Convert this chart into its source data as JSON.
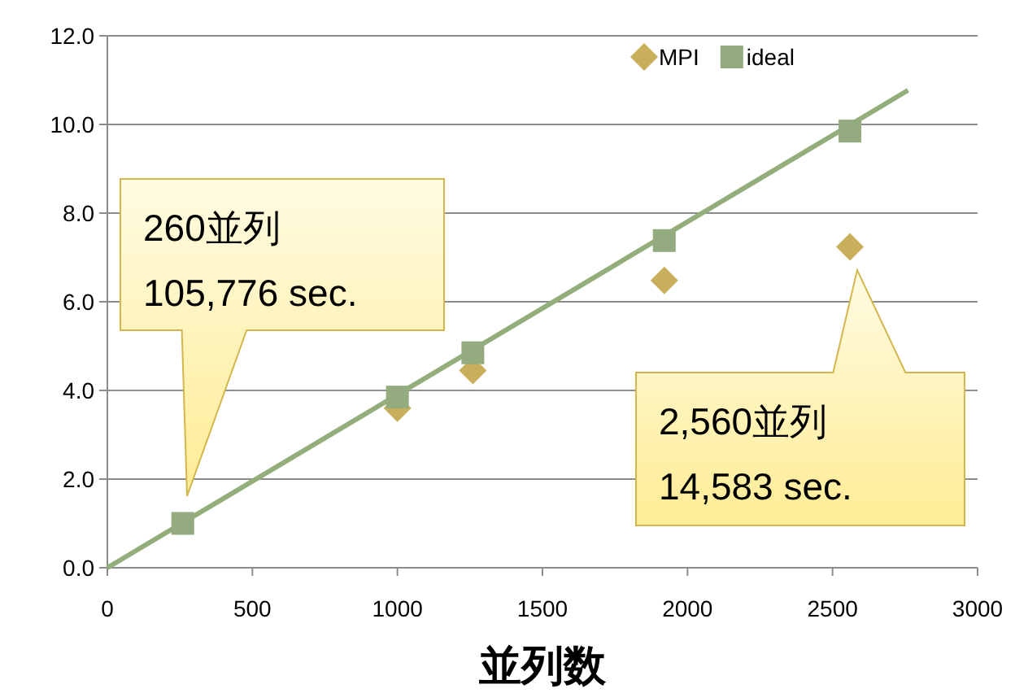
{
  "chart_data": {
    "type": "scatter",
    "xlabel": "並列数",
    "xlim": [
      0,
      3000
    ],
    "xticks": [
      0,
      500,
      1000,
      1500,
      2000,
      2500,
      3000
    ],
    "ylim": [
      0,
      12
    ],
    "yticks": [
      {
        "value": 0,
        "label": "0.0"
      },
      {
        "value": 2,
        "label": "2.0"
      },
      {
        "value": 4,
        "label": "4.0"
      },
      {
        "value": 6,
        "label": "6.0"
      },
      {
        "value": 8,
        "label": "8.0"
      },
      {
        "value": 10,
        "label": "10.0"
      },
      {
        "value": 12,
        "label": "12.0"
      }
    ],
    "grid": "y",
    "legend": "top right",
    "series": [
      {
        "name": "MPI",
        "marker": "diamond",
        "color": "#c9ae5c",
        "x": [
          1000,
          1260,
          1920,
          2560
        ],
        "values": [
          3.6,
          4.45,
          6.48,
          7.24
        ]
      },
      {
        "type": "line",
        "color": "#93ae7a",
        "x": [
          0,
          2760
        ],
        "values": [
          0,
          10.77
        ]
      },
      {
        "name": "ideal",
        "marker": "square",
        "color": "#93ab7e",
        "x": [
          260,
          1000,
          1260,
          1920,
          2560
        ],
        "values": [
          1.0,
          3.85,
          4.85,
          7.38,
          9.85
        ]
      }
    ],
    "annotations": [
      "260並列\n105,776 sec.",
      "2,560並列\n14,583 sec."
    ]
  }
}
